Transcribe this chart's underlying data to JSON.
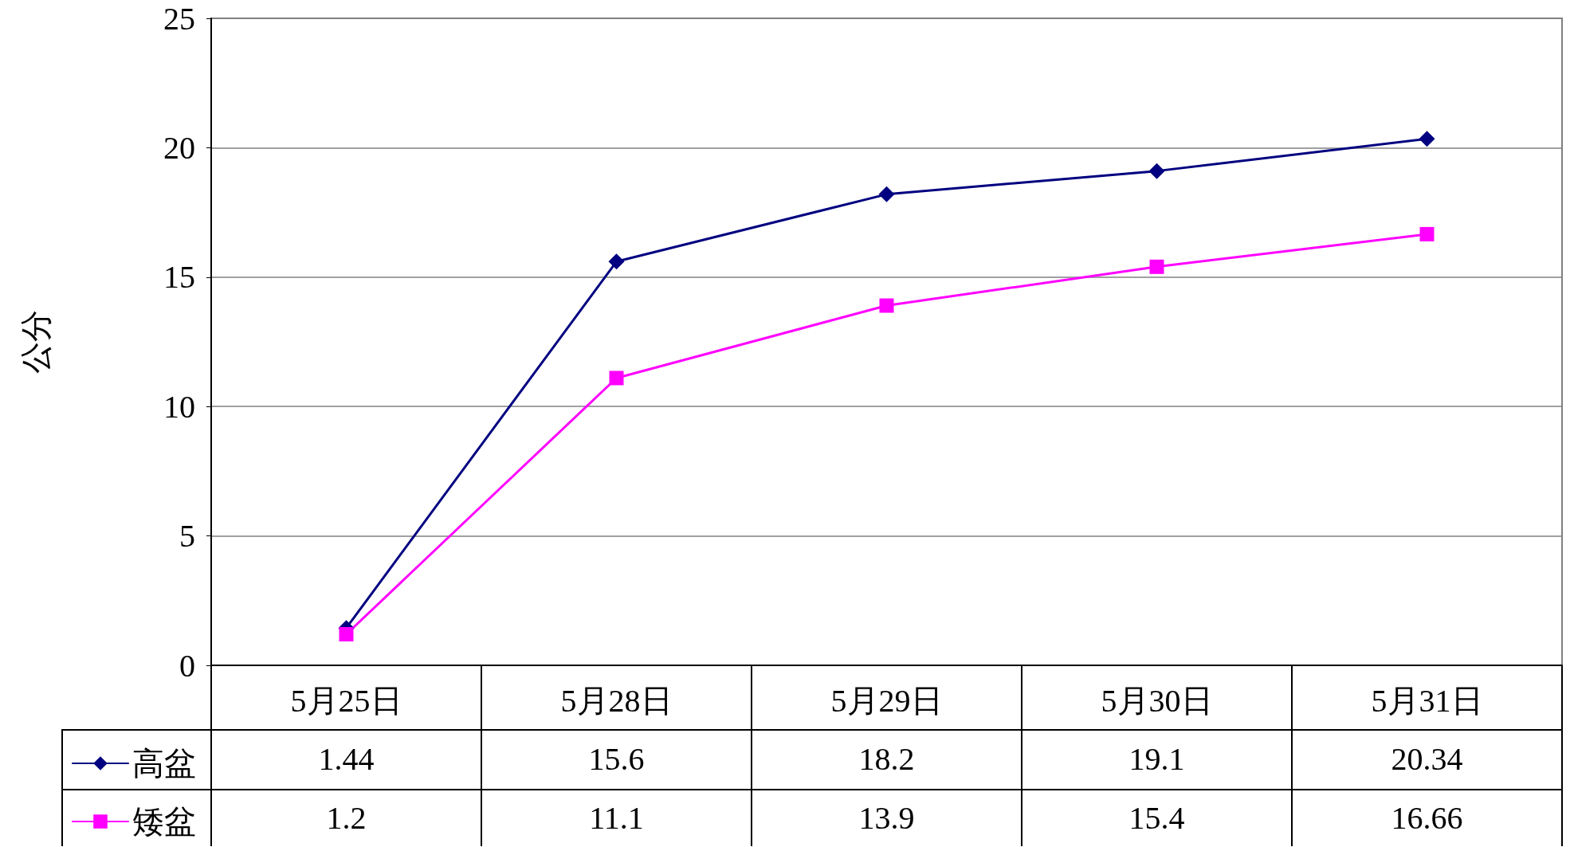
{
  "chart_data": {
    "type": "line",
    "ylabel": "公分",
    "categories": [
      "5月25日",
      "5月28日",
      "5月29日",
      "5月30日",
      "5月31日"
    ],
    "series": [
      {
        "name": "高盆",
        "color": "#000080",
        "marker": "diamond",
        "values": [
          1.44,
          15.6,
          18.2,
          19.1,
          20.34
        ]
      },
      {
        "name": "矮盆",
        "color": "#ff00ff",
        "marker": "square",
        "values": [
          1.2,
          11.1,
          13.9,
          15.4,
          16.66
        ]
      }
    ],
    "ylim": [
      0,
      25
    ],
    "yticks": [
      0,
      5,
      10,
      15,
      20,
      25
    ],
    "grid": "y",
    "legend": "bottom left",
    "data_labels": true
  }
}
